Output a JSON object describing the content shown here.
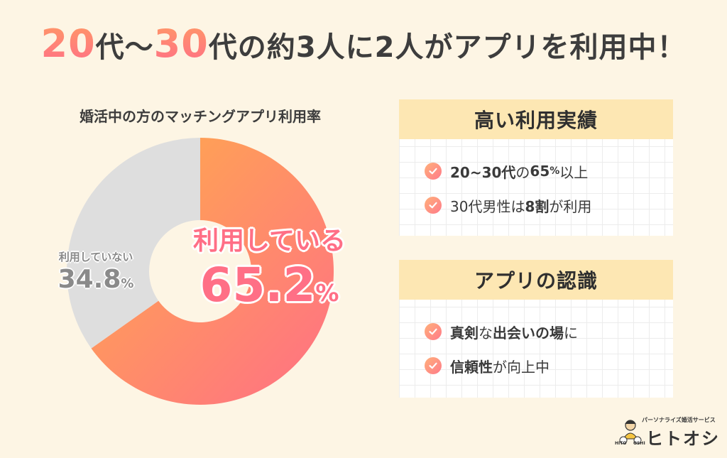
{
  "headline": {
    "num1": "20",
    "text1": "代〜",
    "num2": "30",
    "text2": "代の約",
    "text3": "3人に2人がアプリを利用中！"
  },
  "chart_data": {
    "type": "pie",
    "title": "婚活中の方のマッチングアプリ利用率",
    "slices": [
      {
        "label": "利用している",
        "value": 65.2,
        "unit": "%",
        "color_start": "#ffad4a",
        "color_end": "#ff6f86"
      },
      {
        "label": "利用していない",
        "value": 34.8,
        "unit": "%",
        "color": "#dedede"
      }
    ]
  },
  "cards": [
    {
      "title": "高い利用実績",
      "items": [
        {
          "parts": [
            "20~30代",
            "の",
            "65",
            "%",
            "以上"
          ]
        },
        {
          "parts": [
            "30代男性は",
            "8割",
            "が利用"
          ]
        }
      ]
    },
    {
      "title": "アプリの認識",
      "items": [
        {
          "parts": [
            "真剣",
            "な",
            "出会いの場",
            "に"
          ]
        },
        {
          "parts": [
            "信頼性",
            "が向上中"
          ]
        }
      ]
    }
  ],
  "logo": {
    "tagline": "パーソナライズ婚活サービス",
    "name": "ヒトオシ",
    "mark_left": "HITO",
    "mark_right": "OSHI"
  },
  "colors": {
    "background": "#fdf5e4",
    "accent": "#ff6f86",
    "orange": "#ffad4a",
    "card_header": "#fde7b3",
    "grey_slice": "#dedede"
  }
}
